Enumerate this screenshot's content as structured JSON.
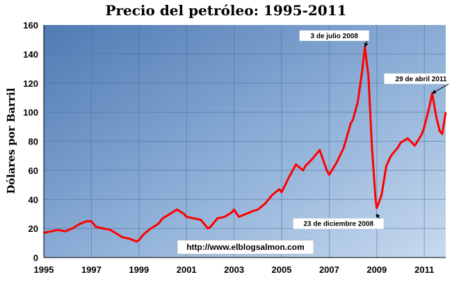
{
  "chart_data": {
    "type": "line",
    "title": "Precio del petróleo:  1995-2011",
    "ylabel": "Dólares por Barril",
    "xlabel": "",
    "xlim": [
      1995,
      2011.9
    ],
    "ylim": [
      0,
      160
    ],
    "xticks": [
      1995,
      1997,
      1999,
      2001,
      2003,
      2005,
      2007,
      2009,
      2011
    ],
    "yticks": [
      0,
      20,
      40,
      60,
      80,
      100,
      120,
      140,
      160
    ],
    "grid": true,
    "line_color": "#ff0000",
    "background": [
      "#4f7ab3",
      "#8fb0d8",
      "#c8daee"
    ],
    "watermark": "http://www.elblogsalmon.com",
    "series": [
      {
        "x": [
          1995.0,
          1995.3,
          1995.6,
          1995.9,
          1996.2,
          1996.5,
          1996.8,
          1997.0,
          1997.2,
          1997.5,
          1997.8,
          1998.0,
          1998.3,
          1998.6,
          1998.9,
          1999.0,
          1999.2,
          1999.5,
          1999.8,
          2000.0,
          2000.3,
          2000.6,
          2000.9,
          2001.0,
          2001.3,
          2001.6,
          2001.9,
          2002.0,
          2002.3,
          2002.6,
          2002.9,
          2003.0,
          2003.2,
          2003.5,
          2003.8,
          2004.0,
          2004.3,
          2004.6,
          2004.9,
          2005.0,
          2005.3,
          2005.6,
          2005.9,
          2006.0,
          2006.3,
          2006.6,
          2006.9,
          2007.0,
          2007.3,
          2007.6,
          2007.9,
          2008.0,
          2008.2,
          2008.4,
          2008.5,
          2008.65,
          2008.8,
          2008.95,
          2009.0,
          2009.2,
          2009.4,
          2009.6,
          2009.9,
          2010.0,
          2010.3,
          2010.6,
          2010.9,
          2011.0,
          2011.2,
          2011.33,
          2011.5,
          2011.65,
          2011.75,
          2011.9
        ],
        "y": [
          17,
          18,
          19,
          18,
          20,
          23,
          25,
          25,
          21,
          20,
          19,
          17,
          14,
          13,
          11,
          12,
          16,
          20,
          23,
          27,
          30,
          33,
          30,
          28,
          27,
          26,
          20,
          21,
          27,
          28,
          31,
          33,
          28,
          30,
          32,
          33,
          37,
          43,
          47,
          45,
          55,
          64,
          60,
          63,
          68,
          74,
          60,
          57,
          65,
          75,
          92,
          95,
          107,
          130,
          145,
          125,
          75,
          40,
          34,
          43,
          63,
          70,
          76,
          79,
          82,
          77,
          85,
          90,
          103,
          113,
          97,
          87,
          85,
          100
        ]
      }
    ],
    "annotations": [
      {
        "text": "3 de julio 2008",
        "x": 2008.5,
        "y": 145
      },
      {
        "text": "29 de abril 2011",
        "x": 2011.33,
        "y": 113
      },
      {
        "text": "23 de diciembre 2008",
        "x": 2008.97,
        "y": 30
      }
    ]
  }
}
